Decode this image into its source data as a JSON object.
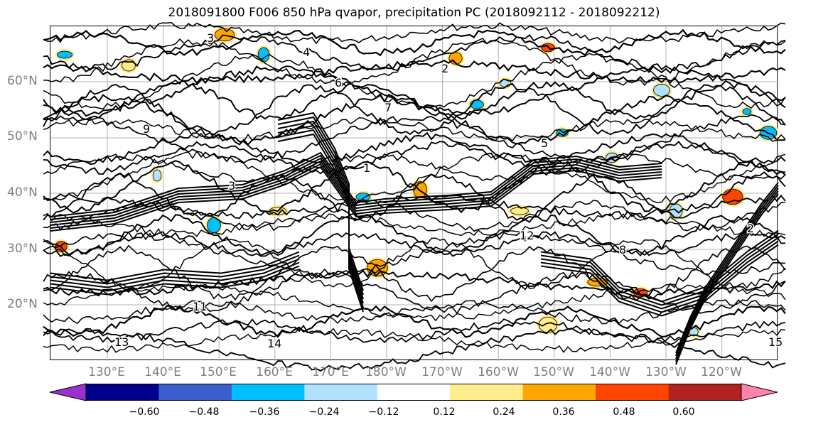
{
  "title": "2018091800 F006 850 hPa qvapor, precipitation PC (2018092112 - 2018092212)",
  "map": {
    "lat_labels": [
      "60°N",
      "50°N",
      "40°N",
      "30°N",
      "20°N"
    ],
    "lon_labels": [
      "130°E",
      "140°E",
      "150°E",
      "160°E",
      "170°E",
      "180°W",
      "170°W",
      "160°W",
      "150°W",
      "140°W",
      "130°W",
      "120°W"
    ],
    "contour_labels": [
      "3",
      "4",
      "2",
      "6",
      "5",
      "1",
      "3",
      "9",
      "12",
      "13",
      "14",
      "2",
      "15",
      "8",
      "11",
      "7"
    ],
    "grid": true
  },
  "colorbar": {
    "colors": [
      "#9932cc",
      "#00008b",
      "#3a5fcd",
      "#00bfff",
      "#b0e2ff",
      "#ffffff",
      "#ffec8b",
      "#ffa500",
      "#ff4500",
      "#b22222",
      "#ff82ab"
    ],
    "ticks": [
      "−0.60",
      "−0.48",
      "−0.36",
      "−0.24",
      "−0.12",
      "0.12",
      "0.24",
      "0.36",
      "0.48",
      "0.60"
    ],
    "extend": "both"
  }
}
